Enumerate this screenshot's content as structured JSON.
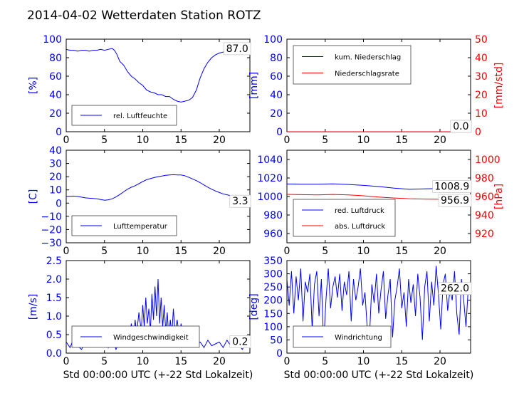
{
  "figure": {
    "title": "2014-04-02 Wetterdaten Station ROTZ"
  },
  "chart_data": [
    {
      "id": "humidity",
      "type": "line",
      "xlim": [
        0,
        24
      ],
      "ylim": [
        0,
        100
      ],
      "xticks": [
        "0",
        "5",
        "10",
        "15",
        "20"
      ],
      "yticks": [
        "0",
        "20",
        "40",
        "60",
        "80",
        "100"
      ],
      "ylabel": "[%]",
      "xlabel": "",
      "legend_position": "lower-left",
      "current_value": "87.0",
      "series": [
        {
          "name": "rel. Luftfeuchte",
          "color": "#0000ff",
          "x": [
            0,
            0.5,
            1,
            1.5,
            2,
            2.5,
            3,
            3.5,
            4,
            4.5,
            5,
            5.5,
            6,
            6.3,
            6.6,
            7,
            7.5,
            8,
            8.5,
            9,
            9.5,
            10,
            10.5,
            11,
            11.5,
            12,
            12.5,
            13,
            13.5,
            14,
            14.5,
            15,
            15.5,
            16,
            16.5,
            17,
            17.5,
            18,
            18.5,
            19,
            19.5,
            20,
            20.5,
            21,
            21.5,
            22,
            22.5,
            23,
            23.5,
            24
          ],
          "y": [
            89,
            88,
            88,
            87,
            88,
            88,
            87,
            88,
            88,
            89,
            88,
            89,
            90,
            88,
            84,
            76,
            72,
            65,
            60,
            57,
            53,
            50,
            45,
            43,
            42,
            40,
            40,
            38,
            38,
            35,
            33,
            32,
            33,
            34,
            37,
            45,
            58,
            68,
            75,
            80,
            83,
            85,
            86,
            88,
            88,
            87,
            88,
            87,
            87,
            87
          ]
        }
      ]
    },
    {
      "id": "precip",
      "type": "line",
      "xlim": [
        0,
        24
      ],
      "ylim": [
        0,
        100
      ],
      "ylim_right": [
        0,
        50
      ],
      "xticks": [
        "0",
        "5",
        "10",
        "15",
        "20"
      ],
      "yticks": [
        "0",
        "20",
        "40",
        "60",
        "80",
        "100"
      ],
      "yticks_right": [
        "0",
        "10",
        "20",
        "30",
        "40",
        "50"
      ],
      "ylabel": "[mm]",
      "ylabel_right": "[mm/std]",
      "xlabel": "",
      "legend_position": "upper-left",
      "current_value": "0.0",
      "current_value_right": "0.0",
      "series": [
        {
          "name": "kum. Niederschlag",
          "color": "#0000ff",
          "axis": "left",
          "x": [
            0,
            24
          ],
          "y": [
            0,
            0
          ]
        },
        {
          "name": "Niederschlagsrate",
          "color": "#ff0000",
          "axis": "right",
          "x": [
            0,
            24
          ],
          "y": [
            0,
            0
          ]
        }
      ]
    },
    {
      "id": "temperature",
      "type": "line",
      "xlim": [
        0,
        24
      ],
      "ylim": [
        -30,
        40
      ],
      "xticks": [
        "0",
        "5",
        "10",
        "15",
        "20"
      ],
      "yticks": [
        "−30",
        "−20",
        "−10",
        "0",
        "10",
        "20",
        "30",
        "40"
      ],
      "ylabel": "[C]",
      "xlabel": "",
      "legend_position": "lower-left",
      "current_value": "3.3",
      "series": [
        {
          "name": "Lufttemperatur",
          "color": "#0000ff",
          "x": [
            0,
            0.5,
            1,
            1.5,
            2,
            2.5,
            3,
            3.5,
            4,
            4.5,
            5,
            5.5,
            6,
            6.5,
            7,
            7.5,
            8,
            8.5,
            9,
            9.5,
            10,
            10.5,
            11,
            11.5,
            12,
            12.5,
            13,
            13.5,
            14,
            14.5,
            15,
            15.5,
            16,
            16.5,
            17,
            17.5,
            18,
            18.5,
            19,
            19.5,
            20,
            20.5,
            21,
            21.5,
            22,
            22.5,
            23,
            23.5,
            24
          ],
          "y": [
            5,
            5.2,
            5.3,
            5,
            4.5,
            4,
            3.7,
            3.5,
            3.2,
            2.7,
            2.2,
            2.5,
            3.2,
            4.7,
            6.5,
            8.5,
            10.5,
            12,
            13.2,
            14.7,
            16.3,
            17.7,
            18.5,
            19.3,
            20,
            20.5,
            21,
            21.3,
            21.5,
            21.3,
            21.3,
            20.7,
            19.6,
            18.3,
            17,
            15.5,
            13.7,
            12,
            10.5,
            9.2,
            8,
            7,
            6.3,
            5.6,
            5,
            4.5,
            4,
            3.7,
            3.3
          ]
        }
      ]
    },
    {
      "id": "pressure",
      "type": "line",
      "xlim": [
        0,
        24
      ],
      "ylim": [
        950,
        1050
      ],
      "ylim_right": [
        910,
        1010
      ],
      "xticks": [
        "0",
        "5",
        "10",
        "15",
        "20"
      ],
      "yticks": [
        "960",
        "980",
        "1000",
        "1020",
        "1040"
      ],
      "yticks_right": [
        "920",
        "940",
        "960",
        "980",
        "1000"
      ],
      "ylabel": "",
      "ylabel_right": "[hPa]",
      "xlabel": "",
      "legend_position": "lower-left",
      "current_value": "1008.9",
      "current_value_right": "956.9",
      "series": [
        {
          "name": "red. Luftdruck",
          "color": "#0000ff",
          "axis": "left",
          "x": [
            0,
            2,
            4,
            6,
            8,
            10,
            12,
            14,
            16,
            18,
            20,
            22,
            24
          ],
          "y": [
            1013.5,
            1013.2,
            1013.3,
            1013.6,
            1013,
            1012,
            1010.8,
            1009,
            1007.8,
            1008.2,
            1008.7,
            1009,
            1008.9
          ]
        },
        {
          "name": "abs. Luftdruck",
          "color": "#ff0000",
          "axis": "right",
          "x": [
            0,
            2,
            4,
            6,
            8,
            10,
            12,
            14,
            16,
            18,
            20,
            22,
            24
          ],
          "y": [
            962.3,
            962,
            961.8,
            962.2,
            961.8,
            960.8,
            959.4,
            958.4,
            957.6,
            957.2,
            957,
            957,
            956.9
          ]
        }
      ]
    },
    {
      "id": "windspeed",
      "type": "line",
      "xlim": [
        0,
        24
      ],
      "ylim": [
        0,
        2.5
      ],
      "xticks": [
        "0",
        "5",
        "10",
        "15",
        "20"
      ],
      "yticks": [
        "0.0",
        "0.5",
        "1.0",
        "1.5",
        "2.0",
        "2.5"
      ],
      "ylabel": "[m/s]",
      "xlabel": "Std 00:00:00 UTC (+-22 Std Lokalzeit)",
      "legend_position": "lower-left",
      "current_value": "0.2",
      "series": [
        {
          "name": "Windgeschwindigkeit",
          "color": "#0000ff",
          "x": [
            0,
            0.5,
            1,
            1.5,
            2,
            2.5,
            3,
            3.5,
            4,
            4.5,
            5,
            5.5,
            6,
            6.5,
            7,
            7.5,
            8,
            8.2,
            8.5,
            8.8,
            9,
            9.2,
            9.5,
            9.8,
            10,
            10.2,
            10.4,
            10.6,
            10.8,
            11,
            11.2,
            11.4,
            11.6,
            11.8,
            12,
            12.2,
            12.4,
            12.6,
            12.8,
            13,
            13.2,
            13.4,
            13.6,
            13.8,
            14,
            14.2,
            14.5,
            14.8,
            15,
            15.3,
            15.6,
            16,
            16.3,
            16.6,
            17,
            17.5,
            18,
            18.5,
            19,
            19.5,
            20,
            20.5,
            21,
            21.5,
            22,
            22.5,
            23,
            23.3,
            23.6,
            23.8,
            24
          ],
          "y": [
            0.3,
            0.15,
            0.4,
            0.2,
            0.1,
            0.3,
            0.2,
            0.45,
            0.2,
            0.3,
            0.6,
            0.15,
            0.4,
            0.1,
            0.3,
            0.2,
            0.55,
            0.3,
            0.8,
            0.4,
            0.9,
            0.5,
            1.1,
            0.6,
            1.3,
            0.7,
            1.5,
            0.8,
            1.2,
            0.6,
            1.6,
            0.9,
            1.8,
            1.0,
            2.0,
            0.8,
            1.5,
            0.7,
            1.3,
            0.6,
            1.1,
            0.4,
            0.9,
            0.5,
            1.2,
            0.6,
            0.9,
            0.4,
            0.8,
            0.3,
            0.6,
            0.4,
            0.2,
            0.5,
            0.25,
            0.3,
            0.15,
            0.35,
            0.2,
            0.25,
            0.3,
            0.15,
            0.35,
            0.2,
            0.3,
            0.25,
            0.1,
            0.2,
            0.45,
            0.3,
            0.2
          ]
        }
      ]
    },
    {
      "id": "winddir",
      "type": "line",
      "xlim": [
        0,
        24
      ],
      "ylim": [
        0,
        350
      ],
      "xticks": [
        "0",
        "5",
        "10",
        "15",
        "20"
      ],
      "yticks": [
        "0",
        "50",
        "100",
        "150",
        "200",
        "250",
        "300",
        "350"
      ],
      "ylabel": "[deg]",
      "xlabel": "Std 00:00:00 UTC (+-22 Std Lokalzeit)",
      "legend_position": "lower-left",
      "current_value": "262.0",
      "series": [
        {
          "name": "Windrichtung",
          "color": "#0000ff",
          "x": [
            0,
            0.3,
            0.6,
            0.9,
            1.2,
            1.5,
            1.8,
            2.1,
            2.4,
            2.7,
            3,
            3.3,
            3.6,
            3.9,
            4.2,
            4.5,
            4.8,
            5.1,
            5.4,
            5.7,
            6,
            6.3,
            6.6,
            6.9,
            7.2,
            7.5,
            7.8,
            8.1,
            8.4,
            8.7,
            9,
            9.3,
            9.6,
            9.9,
            10.2,
            10.5,
            10.8,
            11.1,
            11.4,
            11.7,
            12,
            12.3,
            12.6,
            12.9,
            13.2,
            13.5,
            13.8,
            14.1,
            14.4,
            14.7,
            15,
            15.3,
            15.6,
            15.9,
            16.2,
            16.5,
            16.8,
            17.1,
            17.4,
            17.7,
            18,
            18.3,
            18.6,
            18.9,
            19.2,
            19.5,
            19.8,
            20.1,
            20.4,
            20.7,
            21,
            21.3,
            21.6,
            21.9,
            22.2,
            22.5,
            22.8,
            23.1,
            23.4,
            23.7,
            24
          ],
          "y": [
            280,
            180,
            310,
            150,
            290,
            200,
            320,
            120,
            270,
            230,
            300,
            90,
            260,
            310,
            140,
            280,
            30,
            200,
            320,
            170,
            250,
            290,
            210,
            300,
            160,
            270,
            220,
            310,
            120,
            280,
            200,
            250,
            320,
            180,
            230,
            90,
            70,
            260,
            190,
            300,
            150,
            240,
            310,
            130,
            220,
            280,
            60,
            200,
            250,
            320,
            170,
            230,
            100,
            280,
            190,
            260,
            140,
            300,
            210,
            50,
            250,
            310,
            120,
            270,
            180,
            330,
            220,
            90,
            260,
            300,
            160,
            240,
            200,
            310,
            150,
            70,
            280,
            200,
            100,
            250,
            262
          ]
        }
      ]
    }
  ]
}
